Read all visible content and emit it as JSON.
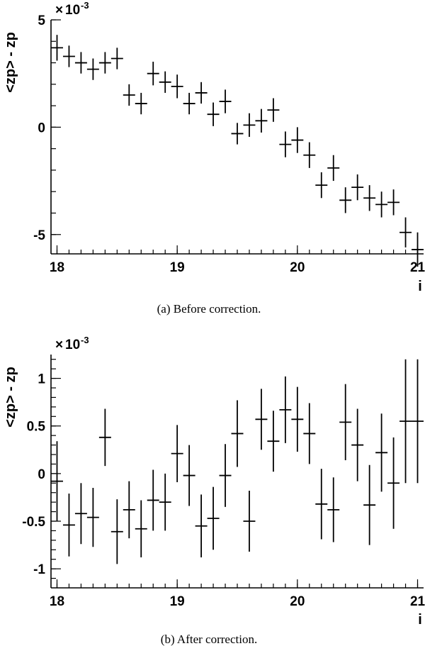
{
  "chart_data": [
    {
      "type": "scatter",
      "ylabel": "<zp> - zp",
      "xlabel": "i",
      "y_exponent_base": "10",
      "y_exponent_power": "-3",
      "caption": "(a)  Before correction.",
      "xlim": [
        17.95,
        21.05
      ],
      "ylim": [
        -5.9,
        5.0
      ],
      "xticks": [
        18,
        19,
        20,
        21
      ],
      "xticklabels": [
        "18",
        "19",
        "20",
        "21"
      ],
      "yticks": [
        5,
        0,
        -5
      ],
      "yticklabels": [
        "5",
        "0",
        "-5"
      ],
      "xerr": 0.05,
      "series": [
        {
          "x": [
            18.0,
            18.1,
            18.2,
            18.3,
            18.4,
            18.5,
            18.6,
            18.7,
            18.8,
            18.9,
            19.0,
            19.1,
            19.2,
            19.3,
            19.4,
            19.5,
            19.6,
            19.7,
            19.8,
            19.9,
            20.0,
            20.1,
            20.2,
            20.3,
            20.4,
            20.5,
            20.6,
            20.7,
            20.8,
            20.9,
            21.0
          ],
          "y": [
            3.7,
            3.3,
            3.0,
            2.7,
            3.0,
            3.2,
            1.5,
            1.1,
            2.5,
            2.1,
            1.9,
            1.1,
            1.6,
            0.6,
            1.2,
            -0.3,
            0.1,
            0.3,
            0.8,
            -0.8,
            -0.6,
            -1.3,
            -2.7,
            -1.9,
            -3.4,
            -2.8,
            -3.3,
            -3.6,
            -3.5,
            -4.9,
            -5.7
          ],
          "yerr": [
            0.6,
            0.5,
            0.5,
            0.5,
            0.5,
            0.5,
            0.5,
            0.5,
            0.55,
            0.5,
            0.55,
            0.5,
            0.5,
            0.55,
            0.55,
            0.5,
            0.55,
            0.55,
            0.55,
            0.6,
            0.6,
            0.6,
            0.6,
            0.6,
            0.6,
            0.6,
            0.6,
            0.6,
            0.6,
            0.7,
            0.8
          ]
        }
      ]
    },
    {
      "type": "scatter",
      "ylabel": "<zp> - zp",
      "xlabel": "i",
      "y_exponent_base": "10",
      "y_exponent_power": "-3",
      "caption": "(b)  After correction.",
      "xlim": [
        17.95,
        21.05
      ],
      "ylim": [
        -1.2,
        1.25
      ],
      "xticks": [
        18,
        19,
        20,
        21
      ],
      "xticklabels": [
        "18",
        "19",
        "20",
        "21"
      ],
      "yticks": [
        1,
        0.5,
        0,
        -0.5,
        -1
      ],
      "yticklabels": [
        "1",
        "0.5",
        "0",
        "-0.5",
        "-1"
      ],
      "xerr": 0.05,
      "series": [
        {
          "x": [
            18.0,
            18.1,
            18.2,
            18.3,
            18.4,
            18.5,
            18.6,
            18.7,
            18.8,
            18.9,
            19.0,
            19.1,
            19.2,
            19.3,
            19.4,
            19.5,
            19.6,
            19.7,
            19.8,
            19.9,
            20.0,
            20.1,
            20.2,
            20.3,
            20.4,
            20.5,
            20.6,
            20.7,
            20.8,
            20.9,
            21.0
          ],
          "y": [
            -0.08,
            -0.54,
            -0.42,
            -0.46,
            0.38,
            -0.61,
            -0.38,
            -0.58,
            -0.28,
            -0.3,
            0.21,
            -0.02,
            -0.55,
            -0.47,
            -0.02,
            0.42,
            -0.5,
            0.57,
            0.34,
            0.67,
            0.57,
            0.42,
            -0.32,
            -0.38,
            0.54,
            0.3,
            -0.33,
            0.22,
            -0.1,
            0.55,
            0.55
          ],
          "yerr": [
            0.42,
            0.33,
            0.32,
            0.31,
            0.3,
            0.34,
            0.3,
            0.3,
            0.32,
            0.3,
            0.3,
            0.32,
            0.33,
            0.33,
            0.33,
            0.35,
            0.32,
            0.32,
            0.32,
            0.35,
            0.34,
            0.32,
            0.37,
            0.34,
            0.4,
            0.38,
            0.42,
            0.41,
            0.48,
            0.65,
            0.65
          ]
        }
      ]
    }
  ]
}
